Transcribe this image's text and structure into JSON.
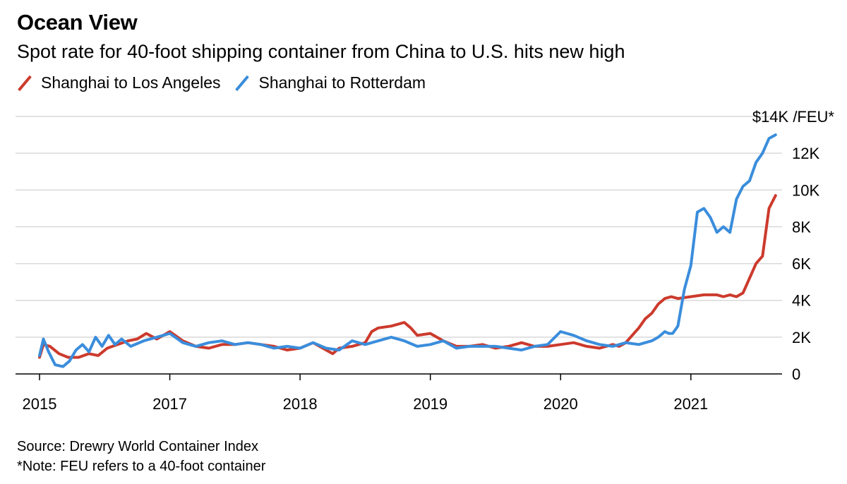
{
  "header": {
    "title": "Ocean View",
    "subtitle": "Spot rate for 40-foot shipping container from China to U.S. hits new high"
  },
  "legend": [
    {
      "label": "Shanghai to Los Angeles",
      "color": "#cc3a2c"
    },
    {
      "label": "Shanghai to Rotterdam",
      "color": "#3a8ddc"
    }
  ],
  "footer": {
    "source": "Source: Drewry World Container Index",
    "note": "*Note: FEU refers to a 40-foot container"
  },
  "chart_data": {
    "type": "line",
    "title": "Ocean View",
    "subtitle": "Spot rate for 40-foot shipping container from China to U.S. hits new high",
    "unit_label": "$14K /FEU*",
    "x_ticks": [
      {
        "label": "2015",
        "x": 2015.0
      },
      {
        "label": "2017",
        "x": 2016.0
      },
      {
        "label": "2018",
        "x": 2017.0
      },
      {
        "label": "2019",
        "x": 2018.0
      },
      {
        "label": "2020",
        "x": 2019.0
      },
      {
        "label": "2021",
        "x": 2020.0
      }
    ],
    "xlim": [
      2015.0,
      2020.7
    ],
    "y_ticks": [
      {
        "value": 0,
        "label": "0"
      },
      {
        "value": 2000,
        "label": "2K"
      },
      {
        "value": 4000,
        "label": "4K"
      },
      {
        "value": 6000,
        "label": "6K"
      },
      {
        "value": 8000,
        "label": "8K"
      },
      {
        "value": 10000,
        "label": "10K"
      },
      {
        "value": 12000,
        "label": "12K"
      },
      {
        "value": 14000,
        "label": "$14K /FEU*"
      }
    ],
    "ylim": [
      0,
      14000
    ],
    "grid": true,
    "legend_position": "top-left",
    "series": [
      {
        "name": "Shanghai to Los Angeles",
        "color": "#cc3a2c",
        "x": [
          2015.0,
          2015.03,
          2015.08,
          2015.15,
          2015.22,
          2015.3,
          2015.38,
          2015.45,
          2015.52,
          2015.6,
          2015.68,
          2015.75,
          2015.82,
          2015.9,
          2016.0,
          2016.1,
          2016.2,
          2016.3,
          2016.4,
          2016.5,
          2016.6,
          2016.7,
          2016.8,
          2016.9,
          2017.0,
          2017.1,
          2017.2,
          2017.25,
          2017.3,
          2017.4,
          2017.5,
          2017.55,
          2017.6,
          2017.7,
          2017.8,
          2017.85,
          2017.9,
          2018.0,
          2018.1,
          2018.2,
          2018.3,
          2018.4,
          2018.5,
          2018.6,
          2018.7,
          2018.8,
          2018.9,
          2019.0,
          2019.1,
          2019.2,
          2019.3,
          2019.4,
          2019.45,
          2019.5,
          2019.6,
          2019.65,
          2019.7,
          2019.75,
          2019.8,
          2019.85,
          2019.9,
          2020.0,
          2020.1,
          2020.2,
          2020.25,
          2020.3,
          2020.35,
          2020.4,
          2020.45,
          2020.5,
          2020.55,
          2020.6,
          2020.65
        ],
        "values": [
          900,
          1600,
          1500,
          1100,
          900,
          900,
          1100,
          1000,
          1400,
          1600,
          1800,
          1900,
          2200,
          1900,
          2300,
          1800,
          1500,
          1400,
          1600,
          1600,
          1700,
          1600,
          1500,
          1300,
          1400,
          1700,
          1300,
          1100,
          1400,
          1500,
          1700,
          2300,
          2500,
          2600,
          2800,
          2500,
          2100,
          2200,
          1800,
          1500,
          1500,
          1600,
          1400,
          1500,
          1700,
          1500,
          1500,
          1600,
          1700,
          1500,
          1400,
          1600,
          1500,
          1700,
          2500,
          3000,
          3300,
          3800,
          4100,
          4200,
          4100,
          4200,
          4300,
          4300,
          4200,
          4300,
          4200,
          4400,
          5200,
          6000,
          6400,
          9000,
          9700
        ]
      },
      {
        "name": "Shanghai to Rotterdam",
        "color": "#3a8ddc",
        "x": [
          2015.0,
          2015.03,
          2015.07,
          2015.12,
          2015.18,
          2015.23,
          2015.28,
          2015.33,
          2015.38,
          2015.43,
          2015.48,
          2015.53,
          2015.58,
          2015.63,
          2015.7,
          2015.8,
          2015.9,
          2016.0,
          2016.1,
          2016.2,
          2016.3,
          2016.4,
          2016.5,
          2016.6,
          2016.7,
          2016.8,
          2016.9,
          2017.0,
          2017.1,
          2017.2,
          2017.3,
          2017.4,
          2017.5,
          2017.6,
          2017.7,
          2017.8,
          2017.9,
          2018.0,
          2018.1,
          2018.2,
          2018.3,
          2018.4,
          2018.5,
          2018.6,
          2018.7,
          2018.8,
          2018.9,
          2019.0,
          2019.1,
          2019.2,
          2019.3,
          2019.4,
          2019.5,
          2019.6,
          2019.7,
          2019.75,
          2019.8,
          2019.83,
          2019.86,
          2019.9,
          2019.95,
          2020.0,
          2020.05,
          2020.1,
          2020.15,
          2020.2,
          2020.25,
          2020.3,
          2020.35,
          2020.4,
          2020.45,
          2020.5,
          2020.55,
          2020.6,
          2020.65
        ],
        "values": [
          1000,
          1900,
          1200,
          500,
          400,
          700,
          1300,
          1600,
          1200,
          2000,
          1500,
          2100,
          1600,
          1900,
          1500,
          1800,
          2000,
          2200,
          1700,
          1500,
          1700,
          1800,
          1600,
          1700,
          1600,
          1400,
          1500,
          1400,
          1700,
          1400,
          1300,
          1800,
          1600,
          1800,
          2000,
          1800,
          1500,
          1600,
          1800,
          1400,
          1500,
          1500,
          1500,
          1400,
          1300,
          1500,
          1600,
          2300,
          2100,
          1800,
          1600,
          1500,
          1700,
          1600,
          1800,
          2000,
          2300,
          2200,
          2200,
          2600,
          4600,
          5900,
          8800,
          9000,
          8500,
          7700,
          8000,
          7700,
          9500,
          10200,
          10500,
          11500,
          12000,
          12800,
          13000
        ]
      }
    ]
  }
}
